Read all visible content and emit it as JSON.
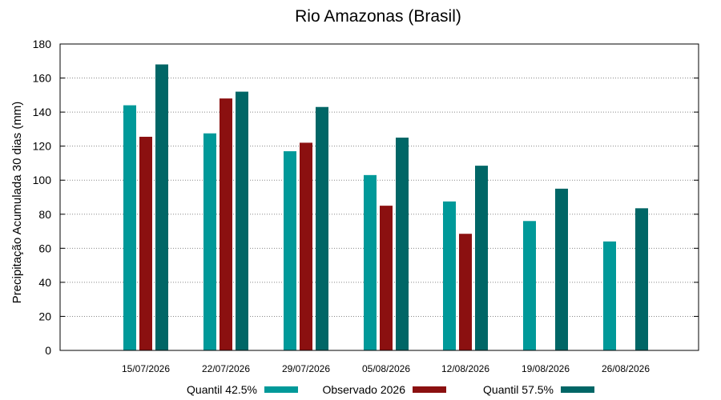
{
  "chart_data": {
    "type": "bar",
    "title": "Rio Amazonas (Brasil)",
    "xlabel": "",
    "ylabel": "Precipitação Acumulada 30 dias (mm)",
    "ylim": [
      0,
      180
    ],
    "yticks": [
      0,
      20,
      40,
      60,
      80,
      100,
      120,
      140,
      160,
      180
    ],
    "grid": true,
    "legend_position": "bottom",
    "categories": [
      "15/07/2026",
      "22/07/2026",
      "29/07/2026",
      "05/08/2026",
      "12/08/2026",
      "19/08/2026",
      "26/08/2026"
    ],
    "series": [
      {
        "name": "Quantil 42.5%",
        "color": "#009999",
        "values": [
          144,
          127.5,
          117,
          103,
          87.5,
          76,
          64
        ]
      },
      {
        "name": "Observado 2026",
        "color": "#8b1010",
        "values": [
          125.5,
          148,
          122,
          85,
          68.5,
          null,
          null
        ]
      },
      {
        "name": "Quantil 57.5%",
        "color": "#006666",
        "values": [
          168,
          152,
          143,
          125,
          108.5,
          95,
          83.5
        ]
      }
    ]
  }
}
